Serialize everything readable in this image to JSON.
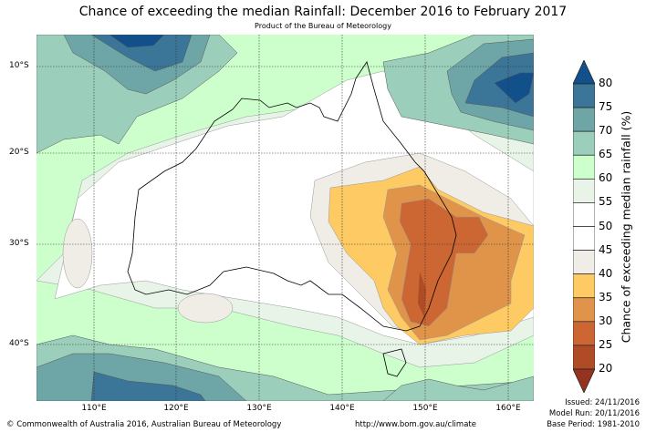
{
  "title": "Chance of exceeding the median Rainfall: December 2016 to February 2017",
  "subtitle": "Product of the Bureau of Meteorology",
  "map": {
    "type": "filled-contour-map",
    "region": "Australia",
    "lon_range": [
      103,
      163
    ],
    "lat_range": [
      -46,
      -6
    ],
    "lat_ticks": [
      "10°S",
      "20°S",
      "30°S",
      "40°S"
    ],
    "lon_ticks": [
      "110°E",
      "120°E",
      "130°E",
      "140°E",
      "150°E",
      "160°E"
    ],
    "gridlines": true
  },
  "colorbar": {
    "label": "Chance of exceeding median rainfall (%)",
    "ticks": [
      "80",
      "75",
      "70",
      "65",
      "60",
      "55",
      "50",
      "45",
      "40",
      "35",
      "30",
      "25",
      "20"
    ],
    "levels": [
      {
        "range": ">80",
        "color": "#12508c"
      },
      {
        "range": "75-80",
        "color": "#3b7597"
      },
      {
        "range": "70-75",
        "color": "#6ea6a7"
      },
      {
        "range": "65-70",
        "color": "#9ccfbb"
      },
      {
        "range": "60-65",
        "color": "#ccffcc"
      },
      {
        "range": "55-60",
        "color": "#e8f4e8"
      },
      {
        "range": "50-55",
        "color": "#ffffff"
      },
      {
        "range": "45-50",
        "color": "#ffffff"
      },
      {
        "range": "40-45",
        "color": "#f0ece6"
      },
      {
        "range": "35-40",
        "color": "#fdca63"
      },
      {
        "range": "30-35",
        "color": "#e0944a"
      },
      {
        "range": "25-30",
        "color": "#cc6633"
      },
      {
        "range": "20-25",
        "color": "#b04c25"
      },
      {
        "range": "<20",
        "color": "#963220"
      }
    ]
  },
  "footer": {
    "copyright": "© Commonwealth of Australia 2016, Australian Bureau of Meteorology",
    "url": "http://www.bom.gov.au/climate",
    "issued": "Issued: 24/11/2016",
    "model_run": "Model Run: 20/11/2016",
    "base_period": "Base Period: 1981-2010"
  }
}
